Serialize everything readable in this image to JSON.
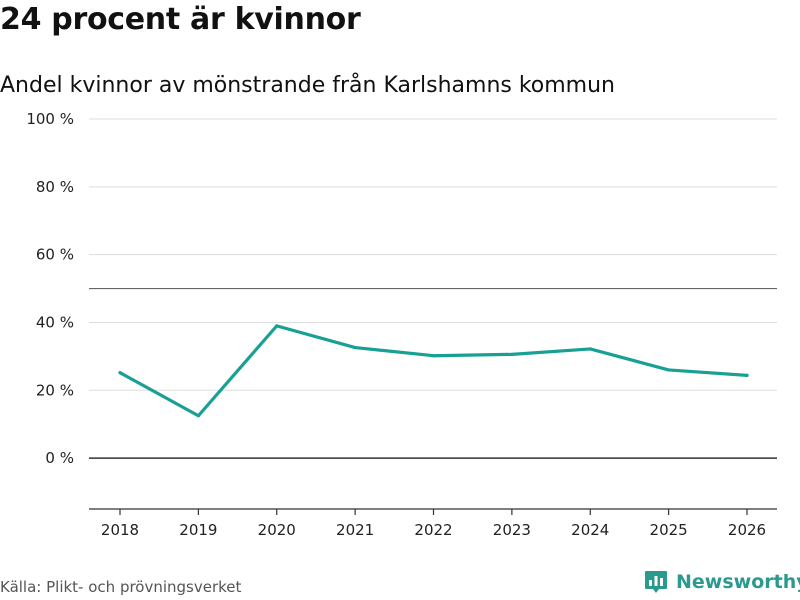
{
  "header": {
    "title": "24 procent är kvinnor",
    "subtitle": "Andel kvinnor av mönstrande från Karlshamns kommun"
  },
  "footer": {
    "source": "Källa: Plikt- och prövningsverket",
    "brand": "Newsworthy"
  },
  "colors": {
    "line": "#18a095",
    "grid": "#dddddd",
    "zero_line": "#333333",
    "reference_line": "#666666",
    "brand": "#2a9a8e"
  },
  "chart_data": {
    "type": "line",
    "title": "24 procent är kvinnor",
    "subtitle": "Andel kvinnor av mönstrande från Karlshamns kommun",
    "xlabel": "",
    "ylabel": "",
    "x": [
      2018,
      2019,
      2020,
      2021,
      2022,
      2023,
      2024,
      2025,
      2026
    ],
    "x_tick_labels": [
      "2018",
      "2019",
      "2020",
      "2021",
      "2022",
      "2023",
      "2024",
      "2025",
      "2026"
    ],
    "series": [
      {
        "name": "Andel kvinnor",
        "values": [
          25.2,
          12.5,
          39.0,
          32.6,
          30.2,
          30.6,
          32.2,
          26.0,
          24.4
        ]
      }
    ],
    "ylim": [
      -15,
      100
    ],
    "y_ticks": [
      0,
      20,
      40,
      60,
      80,
      100
    ],
    "y_tick_labels": [
      "0 %",
      "20 %",
      "40 %",
      "60 %",
      "80 %",
      "100 %"
    ],
    "reference_line": 50,
    "grid": true,
    "legend": "none"
  }
}
